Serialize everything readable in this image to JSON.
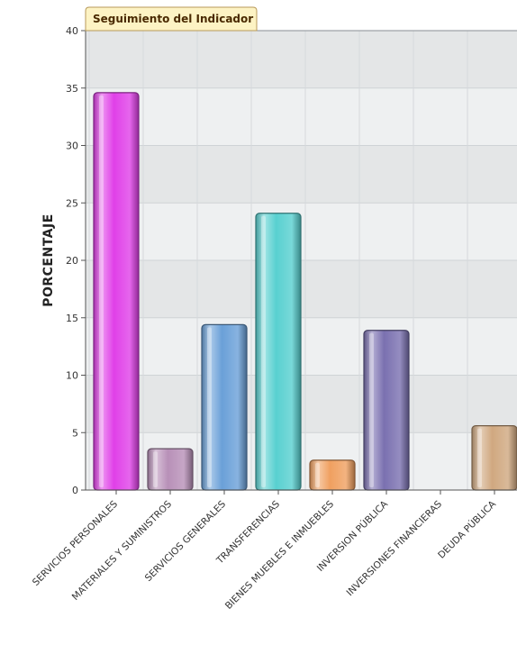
{
  "chart_data": {
    "type": "bar",
    "title": "Seguimiento del Indicador",
    "xlabel": "",
    "ylabel": "PORCENTAJE",
    "ylim": [
      0,
      40
    ],
    "yticks": [
      0,
      5,
      10,
      15,
      20,
      25,
      30,
      35,
      40
    ],
    "grid": true,
    "legend": "none",
    "categories": [
      "SERVICIOS PERSONALES",
      "MATERIALES Y SUMINISTROS",
      "SERVICIOS GENERALES",
      "TRANSFERENCIAS",
      "BIENES MUEBLES E INMUEBLES",
      "INVERSION PÚBLICA",
      "INVERSIONES FINANCIERAS",
      "DEUDA PÚBLICA"
    ],
    "values": [
      34.6,
      3.6,
      14.4,
      24.1,
      2.6,
      13.9,
      0,
      5.6
    ],
    "colors": [
      "#e040e8",
      "#b890b8",
      "#6aa0d8",
      "#58d0d0",
      "#f0a060",
      "#7a70b0",
      "#cccccc",
      "#d0a880"
    ]
  }
}
